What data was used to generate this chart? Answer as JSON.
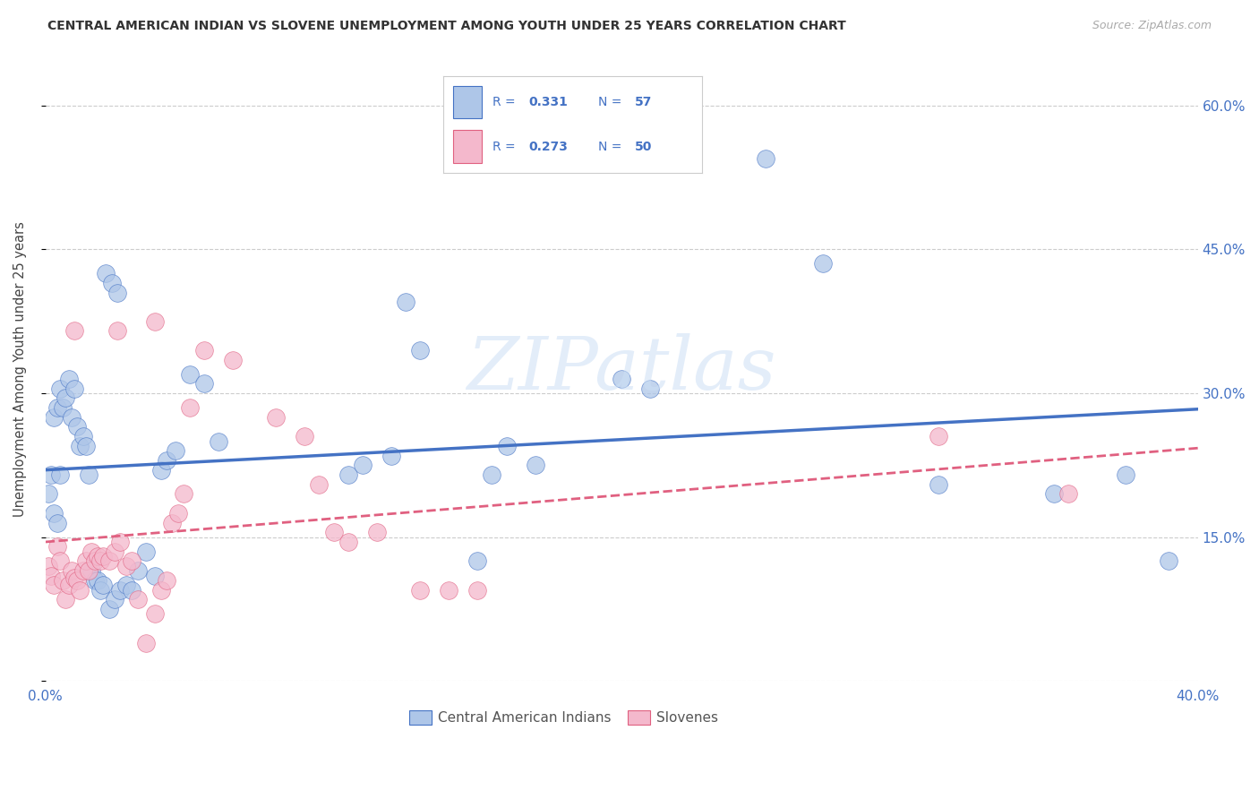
{
  "title": "CENTRAL AMERICAN INDIAN VS SLOVENE UNEMPLOYMENT AMONG YOUTH UNDER 25 YEARS CORRELATION CHART",
  "source": "Source: ZipAtlas.com",
  "ylabel": "Unemployment Among Youth under 25 years",
  "xlim": [
    0.0,
    0.4
  ],
  "ylim": [
    0.0,
    0.65
  ],
  "yticks": [
    0.0,
    0.15,
    0.3,
    0.45,
    0.6
  ],
  "xticks": [
    0.0,
    0.08,
    0.16,
    0.24,
    0.32,
    0.4
  ],
  "ytick_labels_right": [
    "",
    "15.0%",
    "30.0%",
    "45.0%",
    "60.0%"
  ],
  "watermark": "ZIPatlas",
  "blue_color": "#4472c4",
  "pink_color": "#e06080",
  "blue_scatter_color": "#aec6e8",
  "pink_scatter_color": "#f4b8cc",
  "legend_label_blue": "Central American Indians",
  "legend_label_pink": "Slovenes",
  "blue_R": "0.331",
  "blue_N": "57",
  "pink_R": "0.273",
  "pink_N": "50",
  "blue_points_x": [
    0.001,
    0.002,
    0.003,
    0.004,
    0.005,
    0.003,
    0.004,
    0.005,
    0.006,
    0.007,
    0.008,
    0.009,
    0.01,
    0.011,
    0.012,
    0.013,
    0.014,
    0.015,
    0.016,
    0.017,
    0.018,
    0.019,
    0.02,
    0.022,
    0.024,
    0.026,
    0.028,
    0.03,
    0.032,
    0.035,
    0.038,
    0.04,
    0.042,
    0.045,
    0.05,
    0.055,
    0.06,
    0.021,
    0.023,
    0.025,
    0.105,
    0.11,
    0.12,
    0.125,
    0.13,
    0.15,
    0.155,
    0.16,
    0.17,
    0.2,
    0.21,
    0.25,
    0.27,
    0.31,
    0.35,
    0.39,
    0.375
  ],
  "blue_points_y": [
    0.195,
    0.215,
    0.175,
    0.165,
    0.215,
    0.275,
    0.285,
    0.305,
    0.285,
    0.295,
    0.315,
    0.275,
    0.305,
    0.265,
    0.245,
    0.255,
    0.245,
    0.215,
    0.115,
    0.105,
    0.105,
    0.095,
    0.1,
    0.075,
    0.085,
    0.095,
    0.1,
    0.095,
    0.115,
    0.135,
    0.11,
    0.22,
    0.23,
    0.24,
    0.32,
    0.31,
    0.25,
    0.425,
    0.415,
    0.405,
    0.215,
    0.225,
    0.235,
    0.395,
    0.345,
    0.125,
    0.215,
    0.245,
    0.225,
    0.315,
    0.305,
    0.545,
    0.435,
    0.205,
    0.195,
    0.125,
    0.215
  ],
  "pink_points_x": [
    0.001,
    0.002,
    0.003,
    0.004,
    0.005,
    0.006,
    0.007,
    0.008,
    0.009,
    0.01,
    0.011,
    0.012,
    0.013,
    0.014,
    0.015,
    0.016,
    0.017,
    0.018,
    0.019,
    0.02,
    0.022,
    0.024,
    0.026,
    0.028,
    0.03,
    0.032,
    0.035,
    0.038,
    0.04,
    0.042,
    0.044,
    0.046,
    0.048,
    0.05,
    0.038,
    0.055,
    0.065,
    0.08,
    0.09,
    0.095,
    0.1,
    0.105,
    0.115,
    0.025,
    0.13,
    0.14,
    0.15,
    0.31,
    0.355,
    0.01
  ],
  "pink_points_y": [
    0.12,
    0.11,
    0.1,
    0.14,
    0.125,
    0.105,
    0.085,
    0.1,
    0.115,
    0.108,
    0.105,
    0.095,
    0.115,
    0.125,
    0.115,
    0.135,
    0.125,
    0.13,
    0.125,
    0.13,
    0.125,
    0.135,
    0.145,
    0.12,
    0.125,
    0.085,
    0.04,
    0.07,
    0.095,
    0.105,
    0.165,
    0.175,
    0.195,
    0.285,
    0.375,
    0.345,
    0.335,
    0.275,
    0.255,
    0.205,
    0.155,
    0.145,
    0.155,
    0.365,
    0.095,
    0.095,
    0.095,
    0.255,
    0.195,
    0.365
  ]
}
